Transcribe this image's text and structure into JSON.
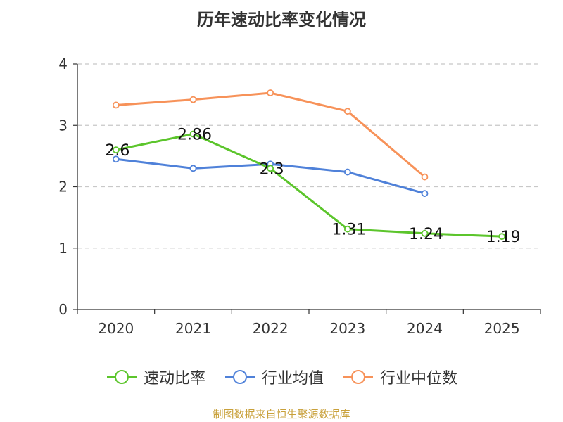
{
  "chart_data": {
    "type": "line",
    "title": "历年速动比率变化情况",
    "categories": [
      "2020",
      "2021",
      "2022",
      "2023",
      "2024",
      "2025"
    ],
    "ylim": [
      0,
      4
    ],
    "yticks": [
      "0",
      "1",
      "2",
      "3",
      "4"
    ],
    "grid": true,
    "legend_position": "bottom",
    "series": [
      {
        "name": "速动比率",
        "color": "#5cc52c",
        "values": [
          2.6,
          2.86,
          2.3,
          1.31,
          1.24,
          1.19
        ],
        "labels": [
          "2.6",
          "2.86",
          "2.3",
          "1.31",
          "1.24",
          "1.19"
        ]
      },
      {
        "name": "行业均值",
        "color": "#4f81d9",
        "values": [
          2.45,
          2.3,
          2.37,
          2.24,
          1.89,
          null
        ]
      },
      {
        "name": "行业中位数",
        "color": "#f79259",
        "values": [
          3.33,
          3.42,
          3.53,
          3.23,
          2.16,
          null
        ]
      }
    ]
  },
  "footer": {
    "source": "制图数据来自恒生聚源数据库"
  }
}
